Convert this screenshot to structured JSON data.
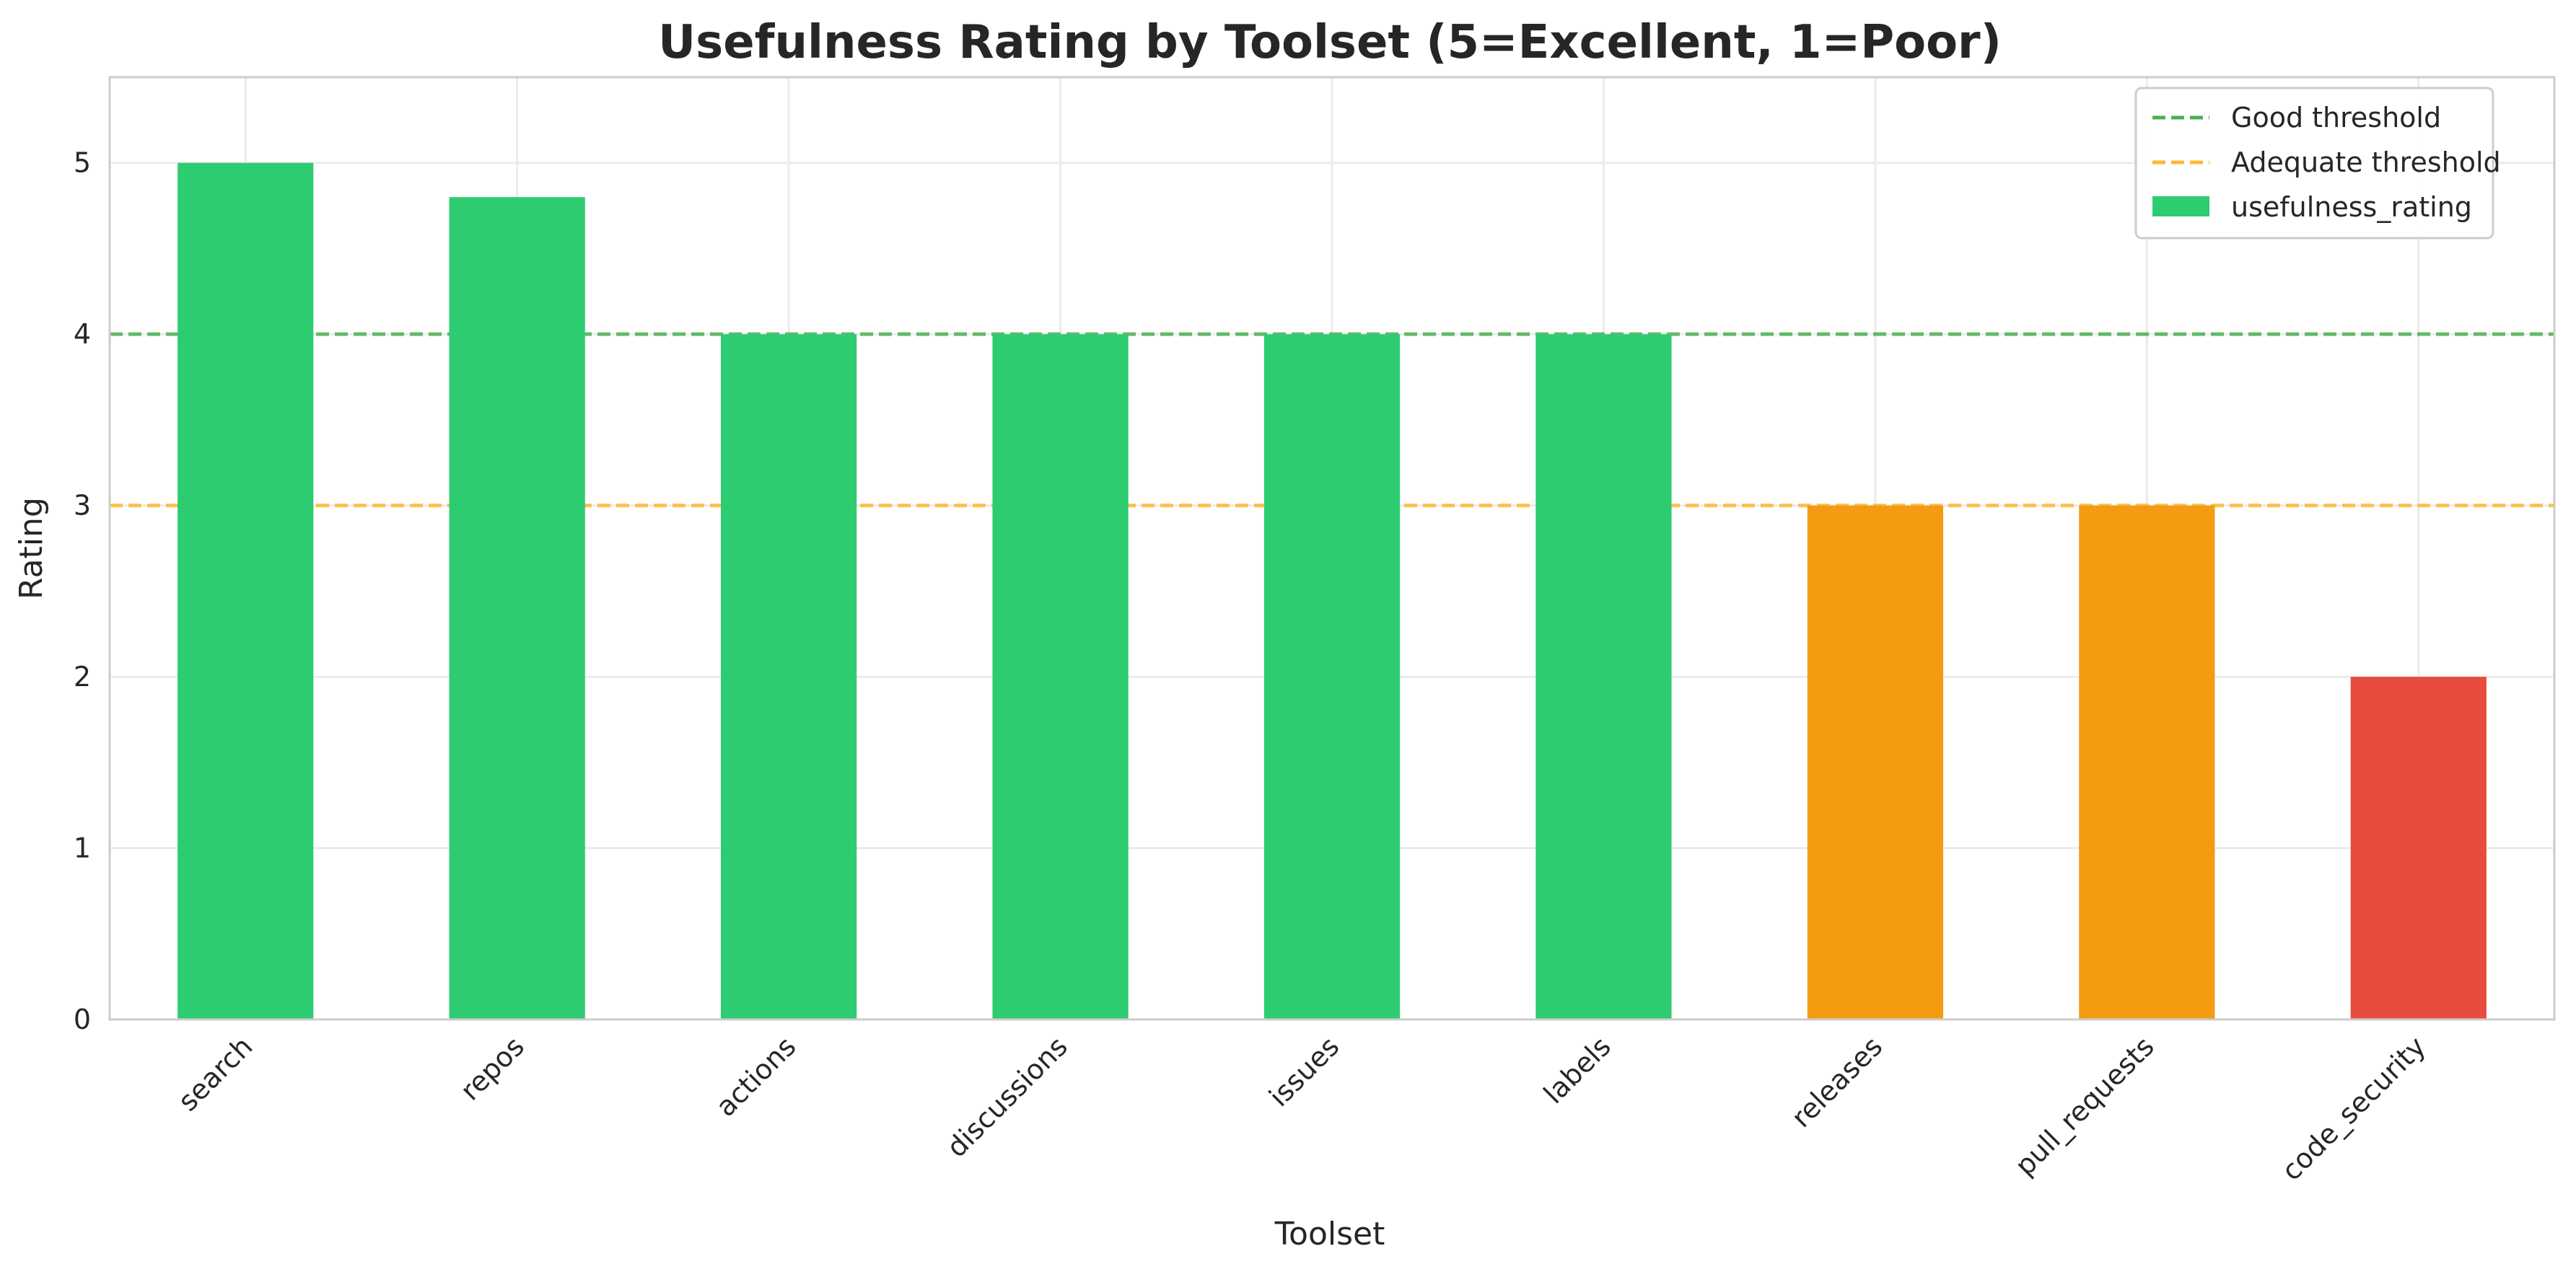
{
  "chart_data": {
    "type": "bar",
    "title": "Usefulness Rating by Toolset (5=Excellent, 1=Poor)",
    "xlabel": "Toolset",
    "ylabel": "Rating",
    "ylim": [
      0,
      5.5
    ],
    "yticks": [
      0,
      1,
      2,
      3,
      4,
      5
    ],
    "grid": true,
    "categories": [
      "search",
      "repos",
      "actions",
      "discussions",
      "issues",
      "labels",
      "releases",
      "pull_requests",
      "code_security"
    ],
    "series": [
      {
        "name": "usefulness_rating",
        "values": [
          5,
          4.8,
          4,
          4,
          4,
          4,
          3,
          3,
          2
        ],
        "colors": [
          "#2ecc71",
          "#2ecc71",
          "#2ecc71",
          "#2ecc71",
          "#2ecc71",
          "#2ecc71",
          "#f39c12",
          "#f39c12",
          "#e74c3c"
        ],
        "legend_color": "#2ecc71"
      }
    ],
    "reference_lines": [
      {
        "name": "Good threshold",
        "value": 4,
        "color": "#4caf50",
        "style": "dashed"
      },
      {
        "name": "Adequate threshold",
        "value": 3,
        "color": "#ffb833",
        "style": "dashed"
      }
    ],
    "legend_position": "top-right"
  }
}
